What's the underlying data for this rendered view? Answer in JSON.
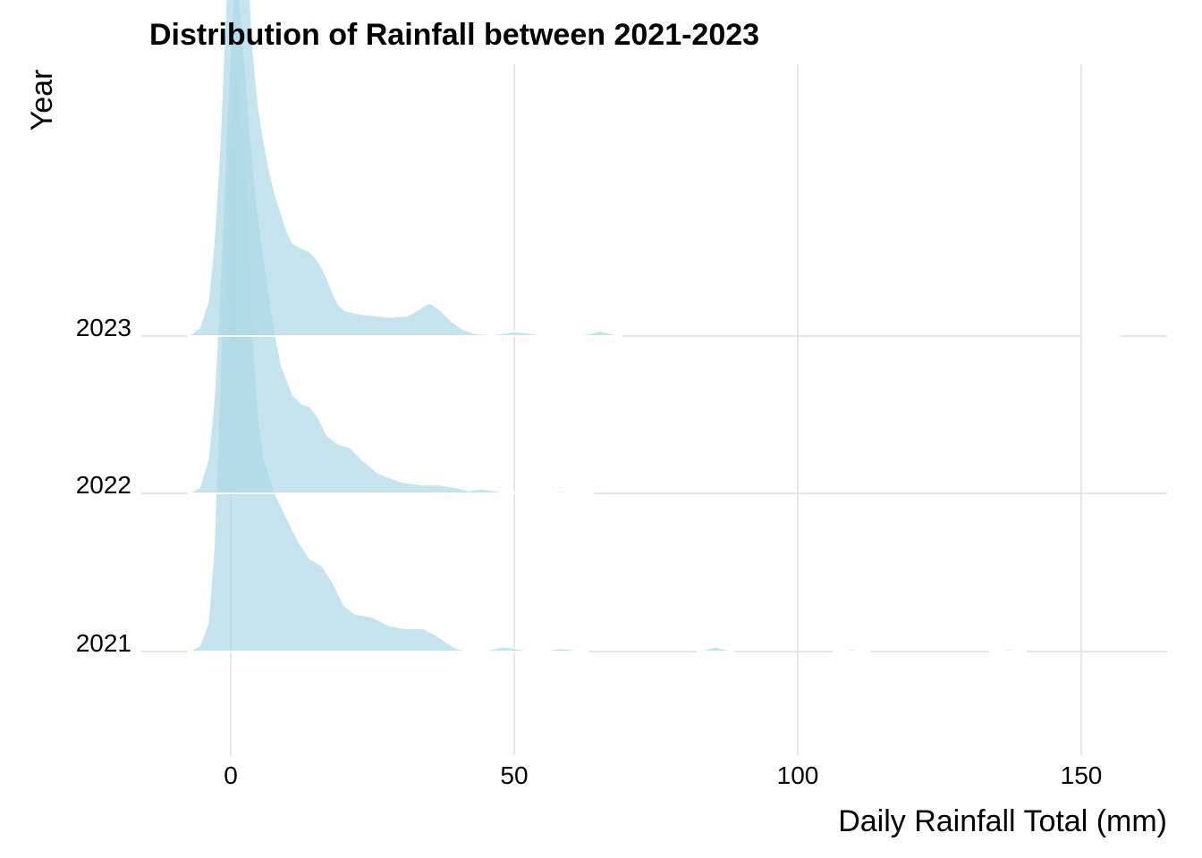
{
  "chart_data": {
    "type": "ridgeline",
    "title": "Distribution of Rainfall between 2021-2023",
    "xlabel": "Daily Rainfall Total (mm)",
    "ylabel": "Year",
    "xlim": [
      -16,
      165
    ],
    "x_ticks": [
      0,
      50,
      100,
      150
    ],
    "grid": true,
    "legend": "none",
    "fill_color": "#add8e6",
    "fill_opacity": 0.7,
    "outline_color": "#ffffff",
    "series": [
      {
        "name": "2021",
        "density": [
          [
            -7.5,
            0
          ],
          [
            -5.5,
            0.01
          ],
          [
            -4,
            0.05
          ],
          [
            -3,
            0.18
          ],
          [
            -2,
            0.45
          ],
          [
            -1,
            0.76
          ],
          [
            0,
            0.94
          ],
          [
            0.5,
            0.99
          ],
          [
            1,
            1.0
          ],
          [
            1.5,
            0.98
          ],
          [
            2,
            0.92
          ],
          [
            3,
            0.74
          ],
          [
            4,
            0.54
          ],
          [
            5,
            0.4
          ],
          [
            6,
            0.33
          ],
          [
            8,
            0.27
          ],
          [
            10,
            0.23
          ],
          [
            12,
            0.19
          ],
          [
            14,
            0.16
          ],
          [
            16,
            0.15
          ],
          [
            18,
            0.12
          ],
          [
            20,
            0.08
          ],
          [
            22,
            0.065
          ],
          [
            25,
            0.06
          ],
          [
            28,
            0.045
          ],
          [
            31,
            0.04
          ],
          [
            34,
            0.04
          ],
          [
            36,
            0.03
          ],
          [
            38,
            0.017
          ],
          [
            40,
            0.005
          ],
          [
            42,
            0.001
          ],
          [
            44,
            0.001
          ],
          [
            46,
            0.004
          ],
          [
            48,
            0.009
          ],
          [
            50,
            0.006
          ],
          [
            52,
            0.003
          ],
          [
            56,
            0.003
          ],
          [
            58,
            0.006
          ],
          [
            60,
            0.004
          ],
          [
            63,
            0
          ]
        ],
        "tail_bumps": [
          [
            85.5,
            0.008
          ],
          [
            109.5,
            0.004
          ],
          [
            137,
            0.004
          ]
        ]
      },
      {
        "name": "2022",
        "density": [
          [
            -7.5,
            0
          ],
          [
            -5.5,
            0.01
          ],
          [
            -4,
            0.06
          ],
          [
            -3,
            0.16
          ],
          [
            -2,
            0.34
          ],
          [
            -1,
            0.58
          ],
          [
            0,
            0.8
          ],
          [
            0.5,
            0.86
          ],
          [
            1,
            0.88
          ],
          [
            1.5,
            0.86
          ],
          [
            2,
            0.81
          ],
          [
            3,
            0.68
          ],
          [
            4,
            0.56
          ],
          [
            5,
            0.47
          ],
          [
            6,
            0.4
          ],
          [
            7,
            0.33
          ],
          [
            8,
            0.27
          ],
          [
            9,
            0.22
          ],
          [
            11,
            0.17
          ],
          [
            12.5,
            0.155
          ],
          [
            14,
            0.15
          ],
          [
            15.5,
            0.13
          ],
          [
            17,
            0.1
          ],
          [
            19,
            0.085
          ],
          [
            21,
            0.08
          ],
          [
            23,
            0.06
          ],
          [
            26,
            0.035
          ],
          [
            30,
            0.02
          ],
          [
            34,
            0.015
          ],
          [
            37,
            0.015
          ],
          [
            40,
            0.01
          ],
          [
            42,
            0.005
          ],
          [
            44,
            0.008
          ],
          [
            46,
            0.006
          ],
          [
            48,
            0.002
          ],
          [
            52,
            0.001
          ],
          [
            56,
            0.002
          ],
          [
            58,
            0.004
          ],
          [
            60,
            0.003
          ],
          [
            64,
            0
          ]
        ],
        "tail_bumps": []
      },
      {
        "name": "2023",
        "density": [
          [
            -7.5,
            0
          ],
          [
            -5.5,
            0.015
          ],
          [
            -4,
            0.06
          ],
          [
            -3,
            0.16
          ],
          [
            -2,
            0.32
          ],
          [
            -1,
            0.55
          ],
          [
            0,
            0.8
          ],
          [
            0.5,
            0.9
          ],
          [
            1,
            0.92
          ],
          [
            1.5,
            0.9
          ],
          [
            2,
            0.84
          ],
          [
            3,
            0.66
          ],
          [
            4,
            0.49
          ],
          [
            5,
            0.39
          ],
          [
            6,
            0.33
          ],
          [
            7,
            0.28
          ],
          [
            8,
            0.24
          ],
          [
            9,
            0.21
          ],
          [
            10,
            0.18
          ],
          [
            11,
            0.16
          ],
          [
            12,
            0.155
          ],
          [
            13,
            0.15
          ],
          [
            14,
            0.145
          ],
          [
            15,
            0.135
          ],
          [
            16,
            0.12
          ],
          [
            17,
            0.1
          ],
          [
            18,
            0.075
          ],
          [
            19,
            0.055
          ],
          [
            20,
            0.045
          ],
          [
            22,
            0.04
          ],
          [
            24,
            0.037
          ],
          [
            28,
            0.033
          ],
          [
            31,
            0.035
          ],
          [
            33,
            0.045
          ],
          [
            35,
            0.058
          ],
          [
            37,
            0.045
          ],
          [
            39,
            0.025
          ],
          [
            41,
            0.012
          ],
          [
            43,
            0.005
          ],
          [
            46,
            0.003
          ],
          [
            48,
            0.005
          ],
          [
            50,
            0.008
          ],
          [
            53,
            0.005
          ],
          [
            55,
            0.002
          ],
          [
            60,
            0.001
          ],
          [
            63,
            0.004
          ],
          [
            65,
            0.009
          ],
          [
            67,
            0.005
          ],
          [
            69,
            0
          ]
        ],
        "tail_bumps": [
          [
            153.5,
            0.003
          ]
        ]
      }
    ]
  }
}
